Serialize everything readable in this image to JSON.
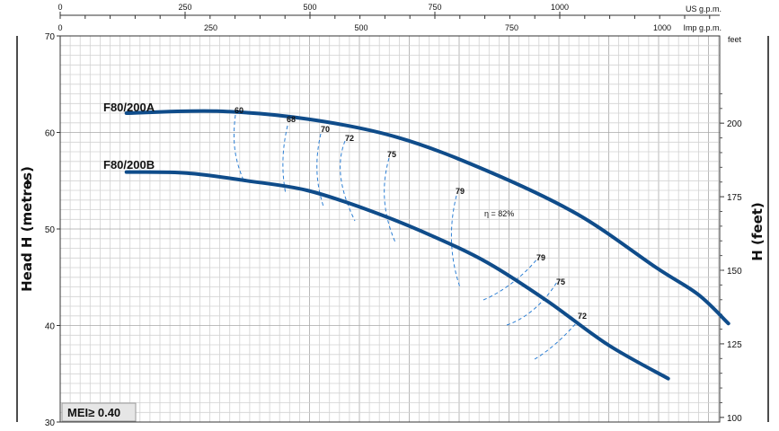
{
  "chart_data": {
    "type": "line",
    "title": "",
    "ylabel": "Head H (metres)",
    "ylabel_right": "H (feet)",
    "ylim": [
      30,
      70
    ],
    "y_ticks": [
      30,
      40,
      50,
      60,
      70
    ],
    "right_ticks": [
      100,
      125,
      150,
      175,
      200
    ],
    "right_unit": "feet",
    "us_ticks": [
      0,
      250,
      500,
      750,
      1000
    ],
    "us_unit": "US g.p.m.",
    "imp_ticks": [
      0,
      250,
      500,
      750,
      1000
    ],
    "imp_unit": "Imp g.p.m.",
    "series": [
      {
        "name": "F80/200A",
        "imp_gpm": [
          0,
          150,
          300,
          450,
          600,
          750,
          880,
          950,
          1000
        ],
        "head_m": [
          62.0,
          62.2,
          61.4,
          59.5,
          56.0,
          51.5,
          46.0,
          43.2,
          40.2
        ]
      },
      {
        "name": "F80/200B",
        "imp_gpm": [
          0,
          100,
          200,
          300,
          400,
          500,
          600,
          700,
          800,
          900
        ],
        "head_m": [
          55.9,
          55.8,
          55.0,
          54.0,
          52.0,
          49.5,
          46.5,
          42.5,
          38.0,
          34.5
        ]
      }
    ],
    "efficiency_labels": [
      "60",
      "68",
      "70",
      "72",
      "75",
      "79",
      "η = 82%",
      "79",
      "75",
      "72"
    ],
    "grid": true,
    "legend": "none",
    "colors": {
      "curve": "#0f4c8a",
      "efficiency": "#2d7fd4",
      "grid": "#b9b9b9"
    },
    "annotation": "MEI≥ 0.40"
  }
}
